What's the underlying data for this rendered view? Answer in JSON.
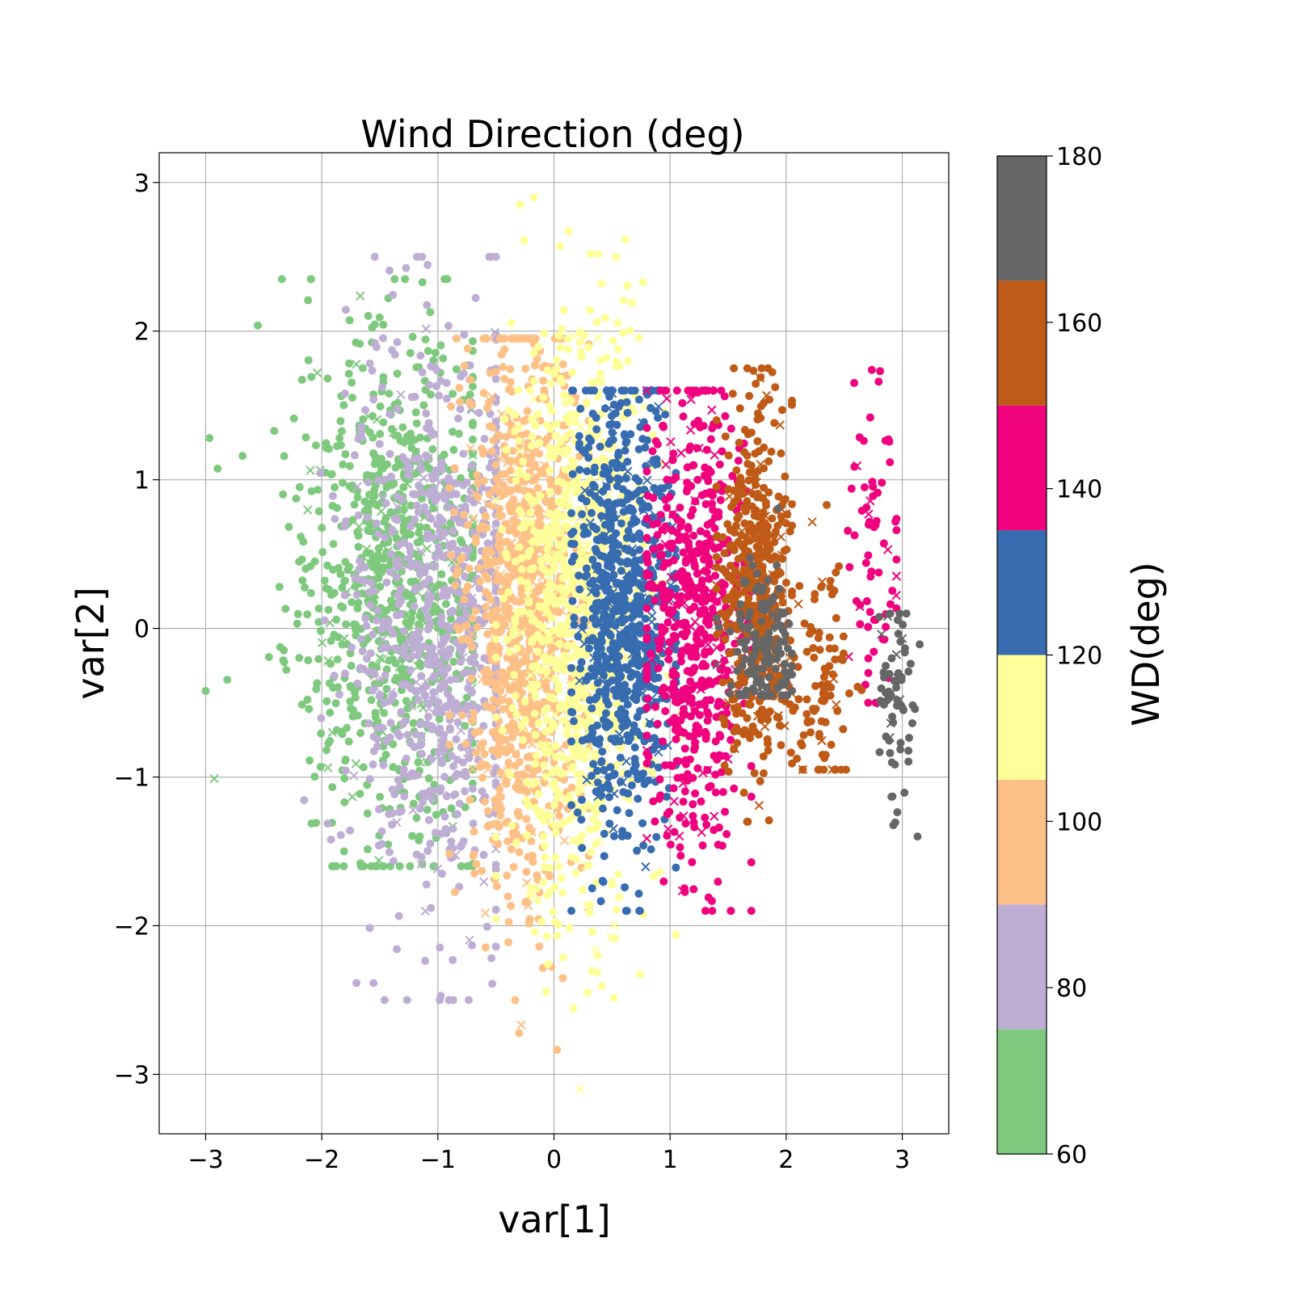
{
  "chart_data": {
    "type": "scatter",
    "title": "Wind Direction (deg)",
    "xlabel": "var[1]",
    "ylabel": "var[2]",
    "xlim": [
      -3.4,
      3.4
    ],
    "ylim": [
      -3.4,
      3.2
    ],
    "xticks": [
      -3,
      -2,
      -1,
      0,
      1,
      2,
      3
    ],
    "xtick_labels": [
      "−3",
      "−2",
      "−1",
      "0",
      "1",
      "2",
      "3"
    ],
    "yticks": [
      -3,
      -2,
      -1,
      0,
      1,
      2,
      3
    ],
    "ytick_labels": [
      "−3",
      "−2",
      "−1",
      "0",
      "1",
      "2",
      "3"
    ],
    "grid": true,
    "markers": [
      "circle",
      "x"
    ],
    "colorbar": {
      "label": "WD(deg)",
      "min": 60,
      "max": 180,
      "ticks": [
        60,
        80,
        100,
        120,
        140,
        160,
        180
      ],
      "bins": [
        {
          "from": 60,
          "to": 75,
          "color": "#7fc97f"
        },
        {
          "from": 75,
          "to": 90,
          "color": "#beaed4"
        },
        {
          "from": 90,
          "to": 105,
          "color": "#fdc086"
        },
        {
          "from": 105,
          "to": 120,
          "color": "#ffff99"
        },
        {
          "from": 120,
          "to": 135,
          "color": "#386cb0"
        },
        {
          "from": 135,
          "to": 150,
          "color": "#f0027f"
        },
        {
          "from": 150,
          "to": 165,
          "color": "#bf5b17"
        },
        {
          "from": 165,
          "to": 180,
          "color": "#666666"
        }
      ]
    },
    "clusters": [
      {
        "wd_bin": 0,
        "x_range": [
          -3.0,
          -0.7
        ],
        "y_range": [
          -1.6,
          2.35
        ],
        "x_center": -1.4,
        "y_center": 0.3,
        "spread_x": 0.45,
        "spread_y": 0.85,
        "count": 900
      },
      {
        "wd_bin": 1,
        "x_range": [
          -2.9,
          -0.5
        ],
        "y_range": [
          -2.5,
          2.5
        ],
        "x_center": -0.95,
        "y_center": 0.0,
        "spread_x": 0.4,
        "spread_y": 1.0,
        "count": 800
      },
      {
        "wd_bin": 2,
        "x_range": [
          -0.9,
          0.3
        ],
        "y_range": [
          -2.95,
          1.95
        ],
        "x_center": -0.25,
        "y_center": 0.1,
        "spread_x": 0.25,
        "spread_y": 0.95,
        "count": 1000
      },
      {
        "wd_bin": 3,
        "x_range": [
          -0.5,
          1.1
        ],
        "y_range": [
          -3.1,
          2.9
        ],
        "x_center": 0.2,
        "y_center": 0.1,
        "spread_x": 0.3,
        "spread_y": 1.0,
        "count": 1000
      },
      {
        "wd_bin": 4,
        "x_range": [
          0.15,
          1.05
        ],
        "y_range": [
          -1.9,
          1.6
        ],
        "x_center": 0.6,
        "y_center": 0.1,
        "spread_x": 0.22,
        "spread_y": 0.75,
        "count": 800
      },
      {
        "wd_bin": 5,
        "x_range": [
          0.8,
          1.7
        ],
        "y_range": [
          -1.9,
          1.6
        ],
        "x_center": 1.2,
        "y_center": 0.0,
        "spread_x": 0.22,
        "spread_y": 0.8,
        "count": 600
      },
      {
        "wd_bin": 5,
        "x_range": [
          2.45,
          2.95
        ],
        "y_range": [
          -0.5,
          1.9
        ],
        "x_center": 2.75,
        "y_center": 0.6,
        "spread_x": 0.12,
        "spread_y": 0.6,
        "count": 70
      },
      {
        "wd_bin": 6,
        "x_range": [
          1.4,
          2.05
        ],
        "y_range": [
          -1.3,
          1.75
        ],
        "x_center": 1.75,
        "y_center": 0.3,
        "spread_x": 0.15,
        "spread_y": 0.6,
        "count": 500
      },
      {
        "wd_bin": 6,
        "x_range": [
          2.0,
          2.65
        ],
        "y_range": [
          -0.95,
          1.1
        ],
        "x_center": 2.3,
        "y_center": -0.4,
        "spread_x": 0.15,
        "spread_y": 0.45,
        "count": 100
      },
      {
        "wd_bin": 7,
        "x_range": [
          1.4,
          2.05
        ],
        "y_range": [
          -0.45,
          1.25
        ],
        "x_center": 1.8,
        "y_center": -0.15,
        "spread_x": 0.15,
        "spread_y": 0.25,
        "count": 150
      },
      {
        "wd_bin": 7,
        "x_range": [
          2.8,
          3.15
        ],
        "y_range": [
          -1.4,
          0.1
        ],
        "x_center": 2.95,
        "y_center": -0.4,
        "spread_x": 0.08,
        "spread_y": 0.4,
        "count": 70
      }
    ]
  }
}
